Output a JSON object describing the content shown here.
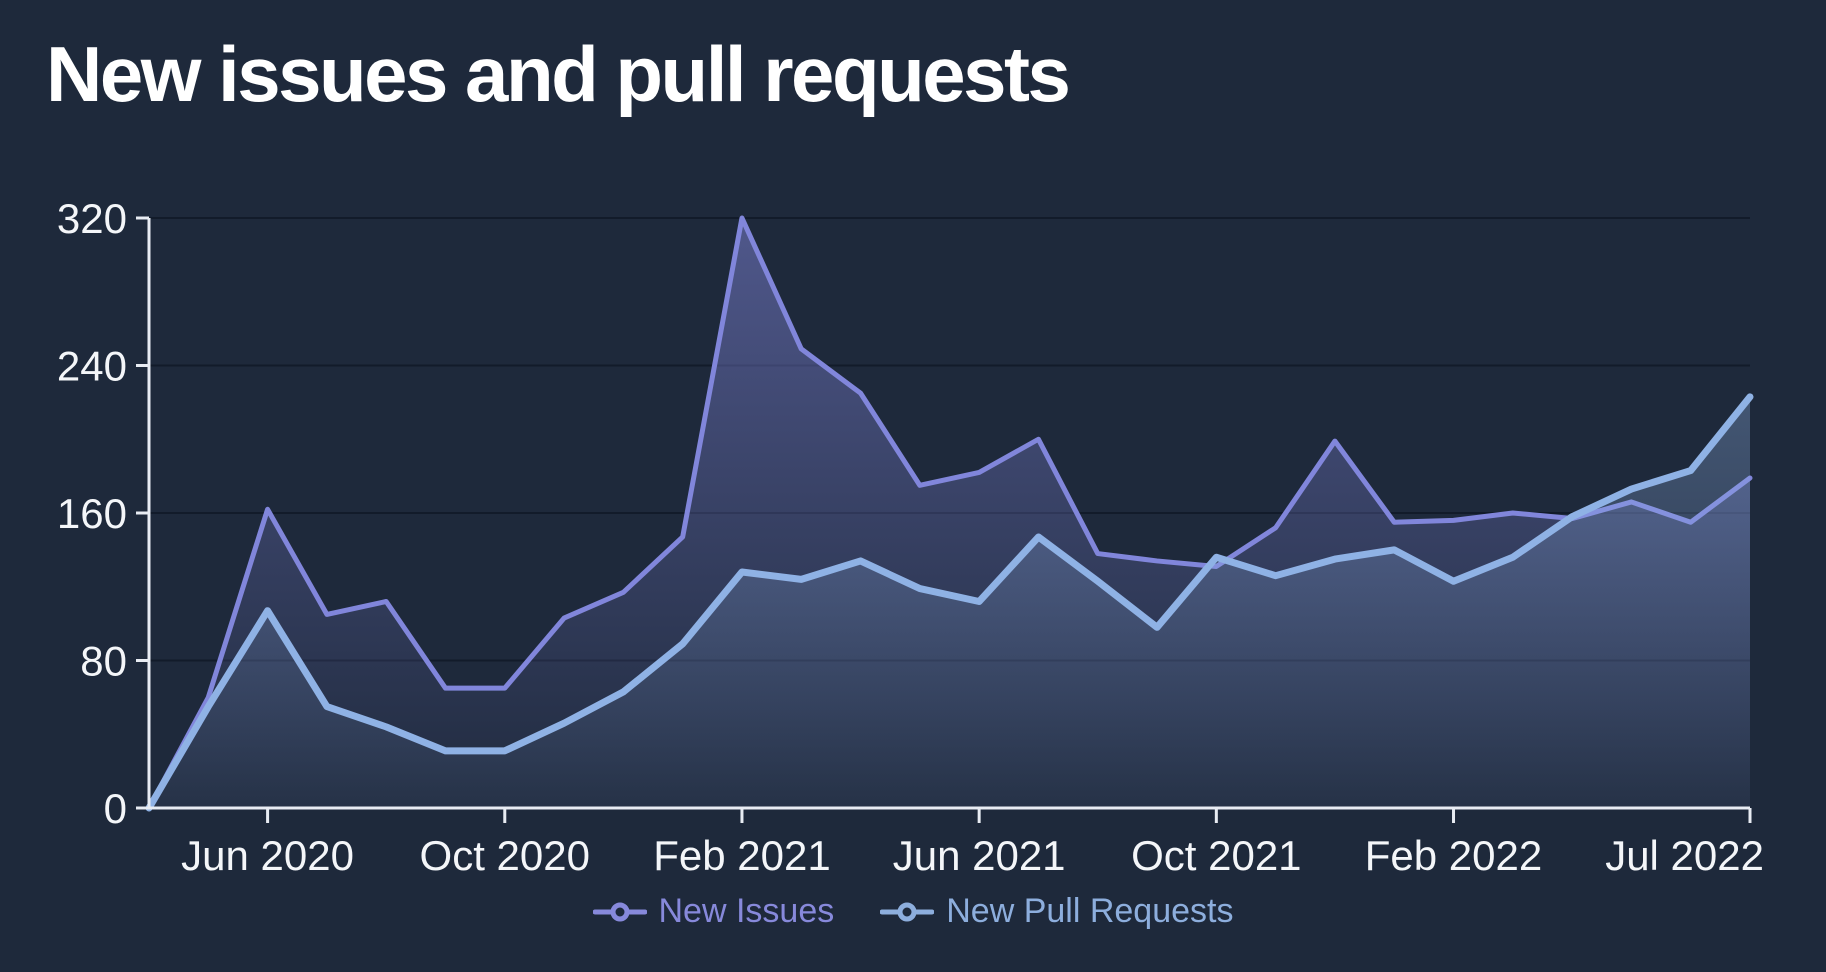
{
  "title": "New issues and pull requests",
  "colors": {
    "background": "#1e293b",
    "title": "#ffffff",
    "axis": "#e8ecf3",
    "tick_label": "#f4f6f9",
    "grid": "rgba(10,16,30,0.55)",
    "issues_line": "#8186db",
    "pull_requests_line": "#8fb2e5",
    "legend_issues_text": "#8789db",
    "legend_pull_requests_text": "#8daedd"
  },
  "legend": {
    "items": [
      {
        "label": "New Issues",
        "color": "#8789db",
        "marker": "line-circle-icon"
      },
      {
        "label": "New Pull Requests",
        "color": "#8daedd",
        "marker": "line-circle-icon"
      }
    ]
  },
  "chart_data": {
    "type": "area",
    "title": "New issues and pull requests",
    "x": [
      "Apr 2020",
      "May 2020",
      "Jun 2020",
      "Jul 2020",
      "Aug 2020",
      "Sep 2020",
      "Oct 2020",
      "Nov 2020",
      "Dec 2020",
      "Jan 2021",
      "Feb 2021",
      "Mar 2021",
      "Apr 2021",
      "May 2021",
      "Jun 2021",
      "Jul 2021",
      "Aug 2021",
      "Sep 2021",
      "Oct 2021",
      "Nov 2021",
      "Dec 2021",
      "Jan 2022",
      "Feb 2022",
      "Mar 2022",
      "Apr 2022",
      "May 2022",
      "Jun 2022",
      "Jul 2022"
    ],
    "series": [
      {
        "name": "New Issues",
        "color": "#8186db",
        "values": [
          0,
          60,
          162,
          105,
          112,
          65,
          65,
          103,
          117,
          147,
          320,
          249,
          225,
          175,
          182,
          200,
          138,
          134,
          131,
          152,
          199,
          155,
          156,
          160,
          157,
          166,
          155,
          179
        ]
      },
      {
        "name": "New Pull Requests",
        "color": "#8fb2e5",
        "values": [
          0,
          55,
          107,
          55,
          44,
          31,
          31,
          46,
          63,
          89,
          128,
          124,
          134,
          119,
          112,
          147,
          123,
          98,
          136,
          126,
          135,
          140,
          123,
          136,
          158,
          173,
          183,
          223
        ]
      }
    ],
    "ylim": [
      0,
      320
    ],
    "y_ticks": [
      0,
      80,
      160,
      240,
      320
    ],
    "x_tick_indices": [
      2,
      6,
      10,
      14,
      18,
      22,
      27
    ],
    "x_tick_labels": [
      "Jun 2020",
      "Oct 2020",
      "Feb 2021",
      "Jun 2021",
      "Oct 2021",
      "Feb 2022",
      "Jul 2022"
    ],
    "grid": true,
    "legend_position": "bottom",
    "markers_on_lines": false
  }
}
